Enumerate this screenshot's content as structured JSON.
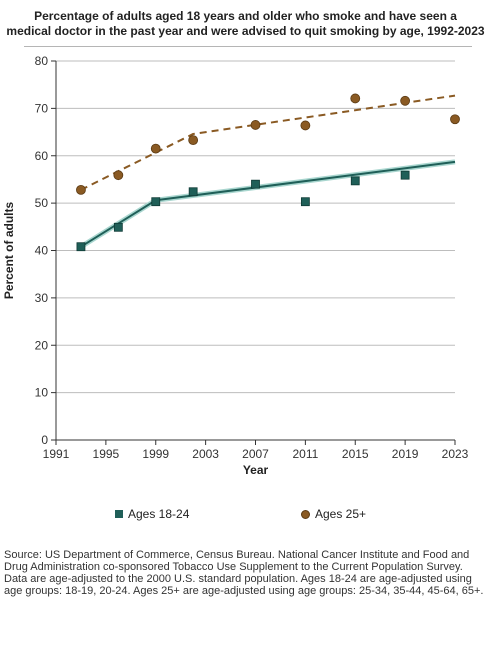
{
  "title_lines": [
    "Percentage of adults aged 18 years and older who smoke and have seen a",
    "medical doctor in the past year and were advised to quit smoking by age, 1992-2023"
  ],
  "footnotes": [
    "Source: US Department of Commerce, Census Bureau. National Cancer Institute and Food and Drug Administration co-sponsored Tobacco Use Supplement to the Current Population Survey.",
    "Data are age-adjusted to the 2000 U.S. standard population. Ages 18-24 are age-adjusted using age groups: 18-19, 20-24. Ages 25+ are age-adjusted using age groups: 25-34, 35-44, 45-64, 65+."
  ],
  "chart_data": {
    "type": "scatter",
    "title": "Percentage of adults aged 18 years and older who smoke and have seen a medical doctor in the past year and were advised to quit smoking by age, 1992-2023",
    "xlabel": "Year",
    "ylabel": "Percent of adults",
    "xlim": [
      1991,
      2023
    ],
    "ylim": [
      0,
      80
    ],
    "xticks": [
      1991,
      1995,
      1999,
      2003,
      2007,
      2011,
      2015,
      2019,
      2023
    ],
    "yticks": [
      0,
      10,
      20,
      30,
      40,
      50,
      60,
      70,
      80
    ],
    "grid": "horizontal",
    "legend_position": "bottom",
    "series": [
      {
        "name": "Ages 18-24",
        "marker": "square",
        "color": "#1f5f58",
        "points": [
          {
            "x": 1993,
            "y": 40.8
          },
          {
            "x": 1996,
            "y": 44.9
          },
          {
            "x": 1999,
            "y": 50.3
          },
          {
            "x": 2002,
            "y": 52.4
          },
          {
            "x": 2007,
            "y": 54.0
          },
          {
            "x": 2011,
            "y": 50.3
          },
          {
            "x": 2015,
            "y": 54.7
          },
          {
            "x": 2019,
            "y": 55.9
          }
        ],
        "trend": {
          "style": "solid",
          "points": [
            {
              "x": 1993,
              "y": 40.8
            },
            {
              "x": 1999,
              "y": 50.6
            },
            {
              "x": 2023,
              "y": 58.7
            }
          ]
        }
      },
      {
        "name": "Ages 25+",
        "marker": "circle",
        "color": "#8a5a23",
        "points": [
          {
            "x": 1993,
            "y": 52.8
          },
          {
            "x": 1996,
            "y": 55.9
          },
          {
            "x": 1999,
            "y": 61.5
          },
          {
            "x": 2002,
            "y": 63.3
          },
          {
            "x": 2007,
            "y": 66.5
          },
          {
            "x": 2011,
            "y": 66.4
          },
          {
            "x": 2015,
            "y": 72.1
          },
          {
            "x": 2019,
            "y": 71.6
          },
          {
            "x": 2023,
            "y": 67.7
          }
        ],
        "trend": {
          "style": "dashed",
          "points": [
            {
              "x": 1993,
              "y": 52.8
            },
            {
              "x": 2002,
              "y": 64.6
            },
            {
              "x": 2023,
              "y": 72.7
            }
          ]
        }
      }
    ]
  }
}
